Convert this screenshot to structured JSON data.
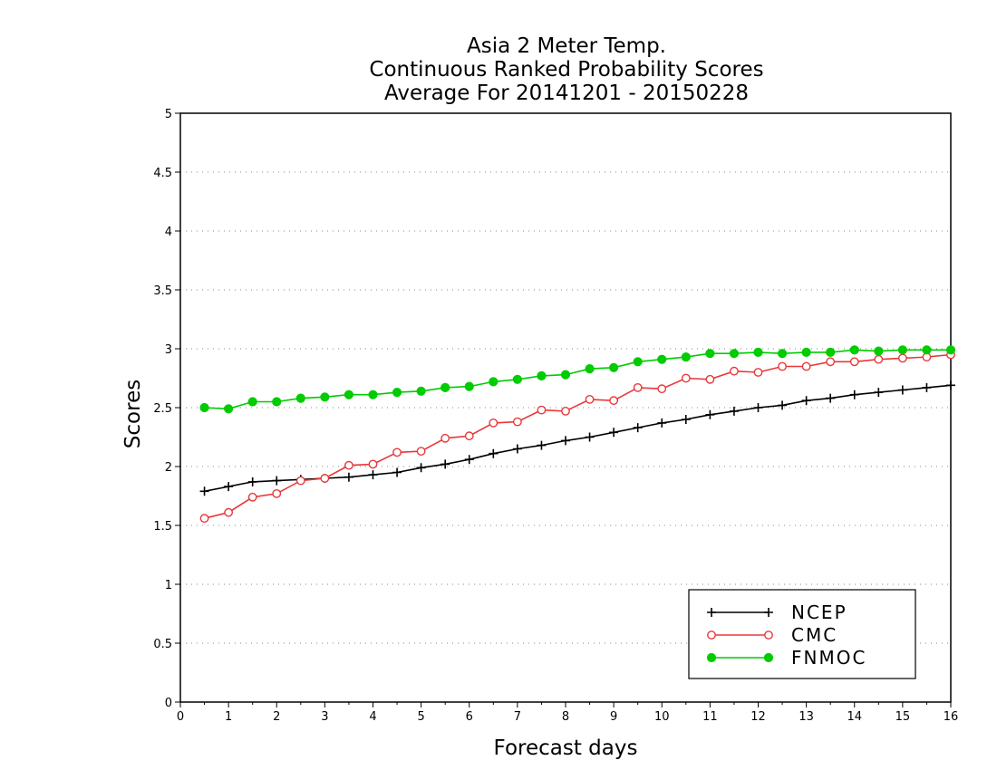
{
  "chart_data": {
    "type": "line",
    "title": [
      "Asia 2 Meter Temp.",
      "Continuous Ranked Probability Scores",
      "Average For 20141201 - 20150228"
    ],
    "xlabel": "Forecast days",
    "ylabel": "Scores",
    "xlim": [
      0,
      16
    ],
    "ylim": [
      0,
      5
    ],
    "x_ticks": [
      0,
      1,
      2,
      3,
      4,
      5,
      6,
      7,
      8,
      9,
      10,
      11,
      12,
      13,
      14,
      15,
      16
    ],
    "y_ticks": [
      0,
      0.5,
      1,
      1.5,
      2,
      2.5,
      3,
      3.5,
      4,
      4.5,
      5
    ],
    "grid": "horizontal dotted",
    "legend_position": "bottom-right",
    "x": [
      0.5,
      1,
      1.5,
      2,
      2.5,
      3,
      3.5,
      4,
      4.5,
      5,
      5.5,
      6,
      6.5,
      7,
      7.5,
      8,
      8.5,
      9,
      9.5,
      10,
      10.5,
      11,
      11.5,
      12,
      12.5,
      13,
      13.5,
      14,
      14.5,
      15,
      15.5,
      16
    ],
    "series": [
      {
        "name": "NCEP",
        "color": "#000000",
        "marker": "plus",
        "values": [
          1.79,
          1.83,
          1.87,
          1.88,
          1.89,
          1.9,
          1.91,
          1.93,
          1.95,
          1.99,
          2.02,
          2.06,
          2.11,
          2.15,
          2.18,
          2.22,
          2.25,
          2.29,
          2.33,
          2.37,
          2.4,
          2.44,
          2.47,
          2.5,
          2.52,
          2.56,
          2.58,
          2.61,
          2.63,
          2.65,
          2.67,
          2.69
        ]
      },
      {
        "name": "CMC",
        "color": "#e8383a",
        "marker": "open-circle",
        "values": [
          1.56,
          1.61,
          1.74,
          1.77,
          1.88,
          1.9,
          2.01,
          2.02,
          2.12,
          2.13,
          2.24,
          2.26,
          2.37,
          2.38,
          2.48,
          2.47,
          2.57,
          2.56,
          2.67,
          2.66,
          2.75,
          2.74,
          2.81,
          2.8,
          2.85,
          2.85,
          2.89,
          2.89,
          2.91,
          2.92,
          2.93,
          2.95
        ]
      },
      {
        "name": "FNMOC",
        "color": "#00cc00",
        "marker": "filled-circle",
        "values": [
          2.5,
          2.49,
          2.55,
          2.55,
          2.58,
          2.59,
          2.61,
          2.61,
          2.63,
          2.64,
          2.67,
          2.68,
          2.72,
          2.74,
          2.77,
          2.78,
          2.83,
          2.84,
          2.89,
          2.91,
          2.93,
          2.96,
          2.96,
          2.97,
          2.96,
          2.97,
          2.97,
          2.99,
          2.98,
          2.99,
          2.99,
          2.99
        ]
      }
    ]
  }
}
